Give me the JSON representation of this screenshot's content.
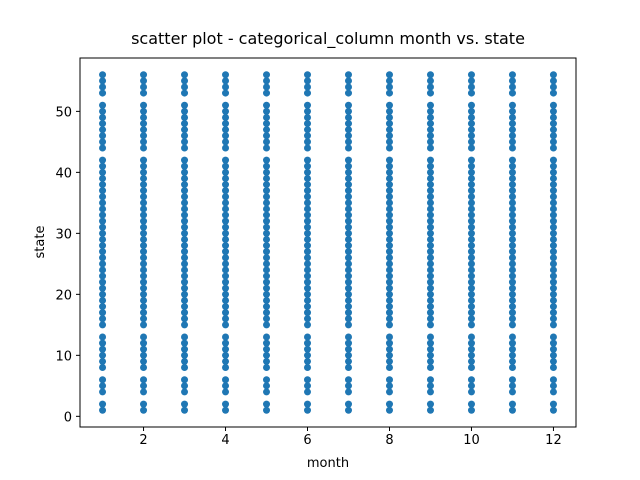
{
  "chart_data": {
    "type": "scatter",
    "title": "scatter plot - categorical_column month vs. state",
    "x_label": "month",
    "y_label": "state",
    "color": "#1f77b4",
    "xlim": [
      0.45,
      12.55
    ],
    "ylim": [
      -1.75,
      58.75
    ],
    "xticks": [
      2,
      4,
      6,
      8,
      10,
      12
    ],
    "yticks": [
      0,
      10,
      20,
      30,
      40,
      50
    ],
    "x": [
      1,
      1,
      1,
      1,
      1,
      1,
      1,
      1,
      1,
      1,
      1,
      1,
      1,
      1,
      1,
      1,
      1,
      1,
      1,
      1,
      1,
      1,
      1,
      1,
      1,
      1,
      1,
      1,
      1,
      1,
      1,
      1,
      1,
      1,
      1,
      1,
      1,
      1,
      1,
      1,
      1,
      1,
      1,
      1,
      1,
      1,
      1,
      1,
      1,
      1,
      1,
      2,
      2,
      2,
      2,
      2,
      2,
      2,
      2,
      2,
      2,
      2,
      2,
      2,
      2,
      2,
      2,
      2,
      2,
      2,
      2,
      2,
      2,
      2,
      2,
      2,
      2,
      2,
      2,
      2,
      2,
      2,
      2,
      2,
      2,
      2,
      2,
      2,
      2,
      2,
      2,
      2,
      2,
      2,
      2,
      2,
      2,
      2,
      2,
      2,
      2,
      2,
      3,
      3,
      3,
      3,
      3,
      3,
      3,
      3,
      3,
      3,
      3,
      3,
      3,
      3,
      3,
      3,
      3,
      3,
      3,
      3,
      3,
      3,
      3,
      3,
      3,
      3,
      3,
      3,
      3,
      3,
      3,
      3,
      3,
      3,
      3,
      3,
      3,
      3,
      3,
      3,
      3,
      3,
      3,
      3,
      3,
      3,
      3,
      3,
      3,
      3,
      3,
      4,
      4,
      4,
      4,
      4,
      4,
      4,
      4,
      4,
      4,
      4,
      4,
      4,
      4,
      4,
      4,
      4,
      4,
      4,
      4,
      4,
      4,
      4,
      4,
      4,
      4,
      4,
      4,
      4,
      4,
      4,
      4,
      4,
      4,
      4,
      4,
      4,
      4,
      4,
      4,
      4,
      4,
      4,
      4,
      4,
      4,
      4,
      4,
      4,
      4,
      4,
      5,
      5,
      5,
      5,
      5,
      5,
      5,
      5,
      5,
      5,
      5,
      5,
      5,
      5,
      5,
      5,
      5,
      5,
      5,
      5,
      5,
      5,
      5,
      5,
      5,
      5,
      5,
      5,
      5,
      5,
      5,
      5,
      5,
      5,
      5,
      5,
      5,
      5,
      5,
      5,
      5,
      5,
      5,
      5,
      5,
      5,
      5,
      5,
      5,
      5,
      5,
      6,
      6,
      6,
      6,
      6,
      6,
      6,
      6,
      6,
      6,
      6,
      6,
      6,
      6,
      6,
      6,
      6,
      6,
      6,
      6,
      6,
      6,
      6,
      6,
      6,
      6,
      6,
      6,
      6,
      6,
      6,
      6,
      6,
      6,
      6,
      6,
      6,
      6,
      6,
      6,
      6,
      6,
      6,
      6,
      6,
      6,
      6,
      6,
      6,
      6,
      6,
      7,
      7,
      7,
      7,
      7,
      7,
      7,
      7,
      7,
      7,
      7,
      7,
      7,
      7,
      7,
      7,
      7,
      7,
      7,
      7,
      7,
      7,
      7,
      7,
      7,
      7,
      7,
      7,
      7,
      7,
      7,
      7,
      7,
      7,
      7,
      7,
      7,
      7,
      7,
      7,
      7,
      7,
      7,
      7,
      7,
      7,
      7,
      7,
      7,
      7,
      7,
      8,
      8,
      8,
      8,
      8,
      8,
      8,
      8,
      8,
      8,
      8,
      8,
      8,
      8,
      8,
      8,
      8,
      8,
      8,
      8,
      8,
      8,
      8,
      8,
      8,
      8,
      8,
      8,
      8,
      8,
      8,
      8,
      8,
      8,
      8,
      8,
      8,
      8,
      8,
      8,
      8,
      8,
      8,
      8,
      8,
      8,
      8,
      8,
      8,
      8,
      8,
      9,
      9,
      9,
      9,
      9,
      9,
      9,
      9,
      9,
      9,
      9,
      9,
      9,
      9,
      9,
      9,
      9,
      9,
      9,
      9,
      9,
      9,
      9,
      9,
      9,
      9,
      9,
      9,
      9,
      9,
      9,
      9,
      9,
      9,
      9,
      9,
      9,
      9,
      9,
      9,
      9,
      9,
      9,
      9,
      9,
      9,
      9,
      9,
      9,
      9,
      9,
      10,
      10,
      10,
      10,
      10,
      10,
      10,
      10,
      10,
      10,
      10,
      10,
      10,
      10,
      10,
      10,
      10,
      10,
      10,
      10,
      10,
      10,
      10,
      10,
      10,
      10,
      10,
      10,
      10,
      10,
      10,
      10,
      10,
      10,
      10,
      10,
      10,
      10,
      10,
      10,
      10,
      10,
      10,
      10,
      10,
      10,
      10,
      10,
      10,
      10,
      10,
      11,
      11,
      11,
      11,
      11,
      11,
      11,
      11,
      11,
      11,
      11,
      11,
      11,
      11,
      11,
      11,
      11,
      11,
      11,
      11,
      11,
      11,
      11,
      11,
      11,
      11,
      11,
      11,
      11,
      11,
      11,
      11,
      11,
      11,
      11,
      11,
      11,
      11,
      11,
      11,
      11,
      11,
      11,
      11,
      11,
      11,
      11,
      11,
      11,
      11,
      11,
      12,
      12,
      12,
      12,
      12,
      12,
      12,
      12,
      12,
      12,
      12,
      12,
      12,
      12,
      12,
      12,
      12,
      12,
      12,
      12,
      12,
      12,
      12,
      12,
      12,
      12,
      12,
      12,
      12,
      12,
      12,
      12,
      12,
      12,
      12,
      12,
      12,
      12,
      12,
      12,
      12,
      12,
      12,
      12,
      12,
      12,
      12,
      12,
      12,
      12,
      12
    ],
    "y": [
      1,
      2,
      4,
      5,
      6,
      8,
      9,
      10,
      11,
      12,
      13,
      15,
      16,
      17,
      18,
      19,
      20,
      21,
      22,
      23,
      24,
      25,
      26,
      27,
      28,
      29,
      30,
      31,
      32,
      33,
      34,
      35,
      36,
      37,
      38,
      39,
      40,
      41,
      42,
      44,
      45,
      46,
      47,
      48,
      49,
      50,
      51,
      53,
      54,
      55,
      56,
      1,
      2,
      4,
      5,
      6,
      8,
      9,
      10,
      11,
      12,
      13,
      15,
      16,
      17,
      18,
      19,
      20,
      21,
      22,
      23,
      24,
      25,
      26,
      27,
      28,
      29,
      30,
      31,
      32,
      33,
      34,
      35,
      36,
      37,
      38,
      39,
      40,
      41,
      42,
      44,
      45,
      46,
      47,
      48,
      49,
      50,
      51,
      53,
      54,
      55,
      56,
      1,
      2,
      4,
      5,
      6,
      8,
      9,
      10,
      11,
      12,
      13,
      15,
      16,
      17,
      18,
      19,
      20,
      21,
      22,
      23,
      24,
      25,
      26,
      27,
      28,
      29,
      30,
      31,
      32,
      33,
      34,
      35,
      36,
      37,
      38,
      39,
      40,
      41,
      42,
      44,
      45,
      46,
      47,
      48,
      49,
      50,
      51,
      53,
      54,
      55,
      56,
      1,
      2,
      4,
      5,
      6,
      8,
      9,
      10,
      11,
      12,
      13,
      15,
      16,
      17,
      18,
      19,
      20,
      21,
      22,
      23,
      24,
      25,
      26,
      27,
      28,
      29,
      30,
      31,
      32,
      33,
      34,
      35,
      36,
      37,
      38,
      39,
      40,
      41,
      42,
      44,
      45,
      46,
      47,
      48,
      49,
      50,
      51,
      53,
      54,
      55,
      56,
      1,
      2,
      4,
      5,
      6,
      8,
      9,
      10,
      11,
      12,
      13,
      15,
      16,
      17,
      18,
      19,
      20,
      21,
      22,
      23,
      24,
      25,
      26,
      27,
      28,
      29,
      30,
      31,
      32,
      33,
      34,
      35,
      36,
      37,
      38,
      39,
      40,
      41,
      42,
      44,
      45,
      46,
      47,
      48,
      49,
      50,
      51,
      53,
      54,
      55,
      56,
      1,
      2,
      4,
      5,
      6,
      8,
      9,
      10,
      11,
      12,
      13,
      15,
      16,
      17,
      18,
      19,
      20,
      21,
      22,
      23,
      24,
      25,
      26,
      27,
      28,
      29,
      30,
      31,
      32,
      33,
      34,
      35,
      36,
      37,
      38,
      39,
      40,
      41,
      42,
      44,
      45,
      46,
      47,
      48,
      49,
      50,
      51,
      53,
      54,
      55,
      56,
      1,
      2,
      4,
      5,
      6,
      8,
      9,
      10,
      11,
      12,
      13,
      15,
      16,
      17,
      18,
      19,
      20,
      21,
      22,
      23,
      24,
      25,
      26,
      27,
      28,
      29,
      30,
      31,
      32,
      33,
      34,
      35,
      36,
      37,
      38,
      39,
      40,
      41,
      42,
      44,
      45,
      46,
      47,
      48,
      49,
      50,
      51,
      53,
      54,
      55,
      56,
      1,
      2,
      4,
      5,
      6,
      8,
      9,
      10,
      11,
      12,
      13,
      15,
      16,
      17,
      18,
      19,
      20,
      21,
      22,
      23,
      24,
      25,
      26,
      27,
      28,
      29,
      30,
      31,
      32,
      33,
      34,
      35,
      36,
      37,
      38,
      39,
      40,
      41,
      42,
      44,
      45,
      46,
      47,
      48,
      49,
      50,
      51,
      53,
      54,
      55,
      56,
      1,
      2,
      4,
      5,
      6,
      8,
      9,
      10,
      11,
      12,
      13,
      15,
      16,
      17,
      18,
      19,
      20,
      21,
      22,
      23,
      24,
      25,
      26,
      27,
      28,
      29,
      30,
      31,
      32,
      33,
      34,
      35,
      36,
      37,
      38,
      39,
      40,
      41,
      42,
      44,
      45,
      46,
      47,
      48,
      49,
      50,
      51,
      53,
      54,
      55,
      56,
      1,
      2,
      4,
      5,
      6,
      8,
      9,
      10,
      11,
      12,
      13,
      15,
      16,
      17,
      18,
      19,
      20,
      21,
      22,
      23,
      24,
      25,
      26,
      27,
      28,
      29,
      30,
      31,
      32,
      33,
      34,
      35,
      36,
      37,
      38,
      39,
      40,
      41,
      42,
      44,
      45,
      46,
      47,
      48,
      49,
      50,
      51,
      53,
      54,
      55,
      56,
      1,
      2,
      4,
      5,
      6,
      8,
      9,
      10,
      11,
      12,
      13,
      15,
      16,
      17,
      18,
      19,
      20,
      21,
      22,
      23,
      24,
      25,
      26,
      27,
      28,
      29,
      30,
      31,
      32,
      33,
      34,
      35,
      36,
      37,
      38,
      39,
      40,
      41,
      42,
      44,
      45,
      46,
      47,
      48,
      49,
      50,
      51,
      53,
      54,
      55,
      56,
      1,
      2,
      4,
      5,
      6,
      8,
      9,
      10,
      11,
      12,
      13,
      15,
      16,
      17,
      18,
      19,
      20,
      21,
      22,
      23,
      24,
      25,
      26,
      27,
      28,
      29,
      30,
      31,
      32,
      33,
      34,
      35,
      36,
      37,
      38,
      39,
      40,
      41,
      42,
      44,
      45,
      46,
      47,
      48,
      49,
      50,
      51,
      53,
      54,
      55,
      56
    ]
  }
}
